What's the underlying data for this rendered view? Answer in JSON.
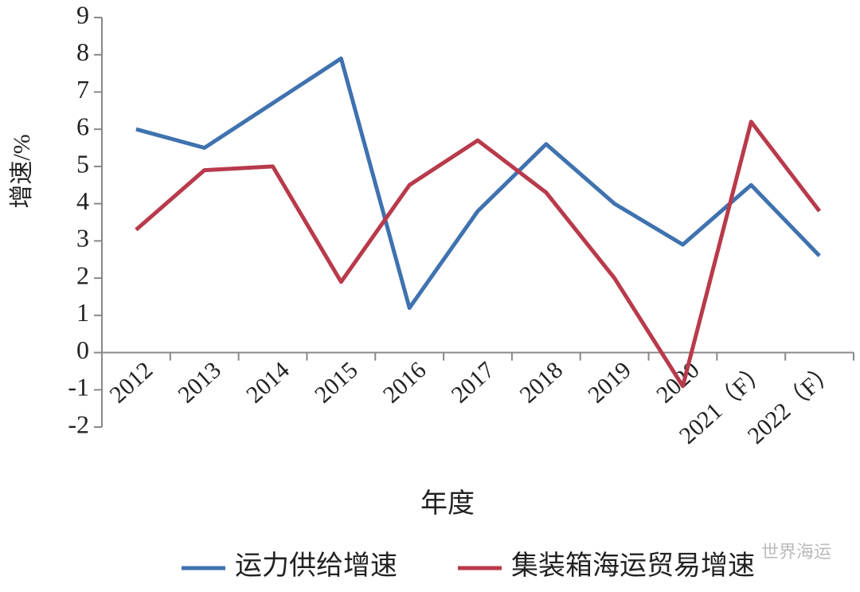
{
  "chart_data": {
    "type": "line",
    "x_label": "年度",
    "y_label": "增速/%",
    "categories": [
      "2012",
      "2013",
      "2014",
      "2015",
      "2016",
      "2017",
      "2018",
      "2019",
      "2020",
      "2021（F）",
      "2022（F）"
    ],
    "series": [
      {
        "name": "运力供给增速",
        "color": "#3f72af",
        "values": [
          6.0,
          5.5,
          6.7,
          7.9,
          1.2,
          3.8,
          5.6,
          4.0,
          2.9,
          4.5,
          2.6
        ]
      },
      {
        "name": "集装箱海运贸易增速",
        "color": "#b83a4b",
        "values": [
          3.3,
          4.9,
          5.0,
          1.9,
          4.5,
          5.7,
          4.3,
          2.0,
          -0.9,
          6.2,
          3.8
        ]
      }
    ],
    "ylim": [
      -2,
      9
    ],
    "yticks": [
      -2,
      -1,
      0,
      1,
      2,
      3,
      4,
      5,
      6,
      7,
      8,
      9
    ],
    "legend": "bottom",
    "grid": false,
    "watermark": "世界海运"
  }
}
